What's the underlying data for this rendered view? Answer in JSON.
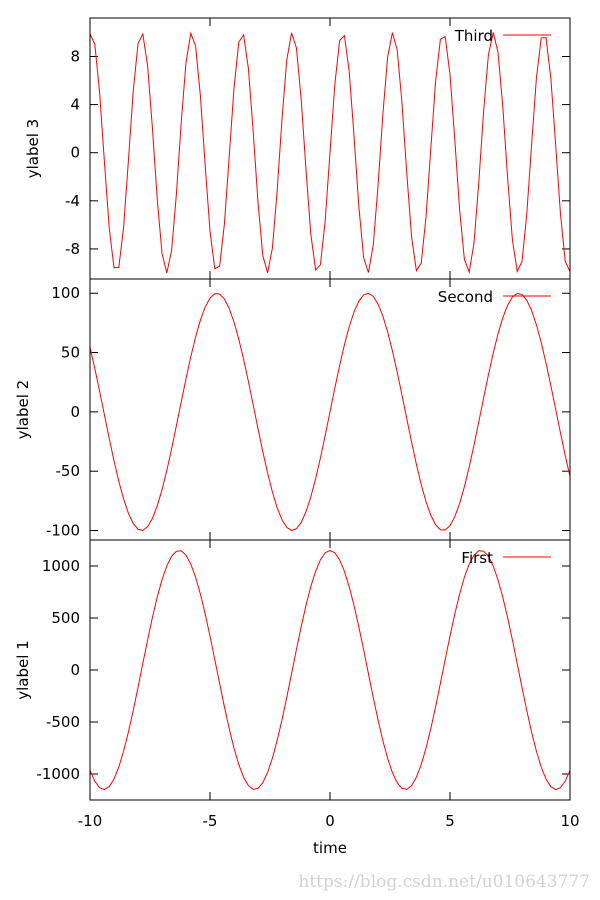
{
  "chart_data": [
    {
      "type": "line",
      "panel": "top",
      "ylabel": "ylabel 3",
      "xlim": [
        -10,
        10
      ],
      "ylim": [
        -10.5,
        11.2
      ],
      "yticks": [
        -8,
        -4,
        0,
        4,
        8
      ],
      "xticks": [
        -10,
        -5,
        0,
        5,
        10
      ],
      "show_xtick_labels": false,
      "legend_position": "top-right",
      "series": [
        {
          "name": "Third",
          "color": "#ff0000",
          "function": "10*sin(3*x)"
        }
      ]
    },
    {
      "type": "line",
      "panel": "middle",
      "ylabel": "ylabel 2",
      "xlim": [
        -10,
        10
      ],
      "ylim": [
        -108,
        112
      ],
      "yticks": [
        -100,
        -50,
        0,
        50,
        100
      ],
      "xticks": [
        -10,
        -5,
        0,
        5,
        10
      ],
      "show_xtick_labels": false,
      "legend_position": "top-right",
      "series": [
        {
          "name": "Second",
          "color": "#ff0000",
          "function": "100*sin(x)"
        }
      ]
    },
    {
      "type": "line",
      "panel": "bottom",
      "ylabel": "ylabel 1",
      "xlabel": "time",
      "xlim": [
        -10,
        10
      ],
      "ylim": [
        -1250,
        1250
      ],
      "yticks": [
        -1000,
        -500,
        0,
        500,
        1000
      ],
      "xticks": [
        -10,
        -5,
        0,
        5,
        10
      ],
      "show_xtick_labels": true,
      "legend_position": "top-right",
      "series": [
        {
          "name": "First",
          "color": "#ff0000",
          "function": "1150*cos(x)"
        }
      ]
    }
  ],
  "watermark": "https://blog.csdn.net/u010643777"
}
